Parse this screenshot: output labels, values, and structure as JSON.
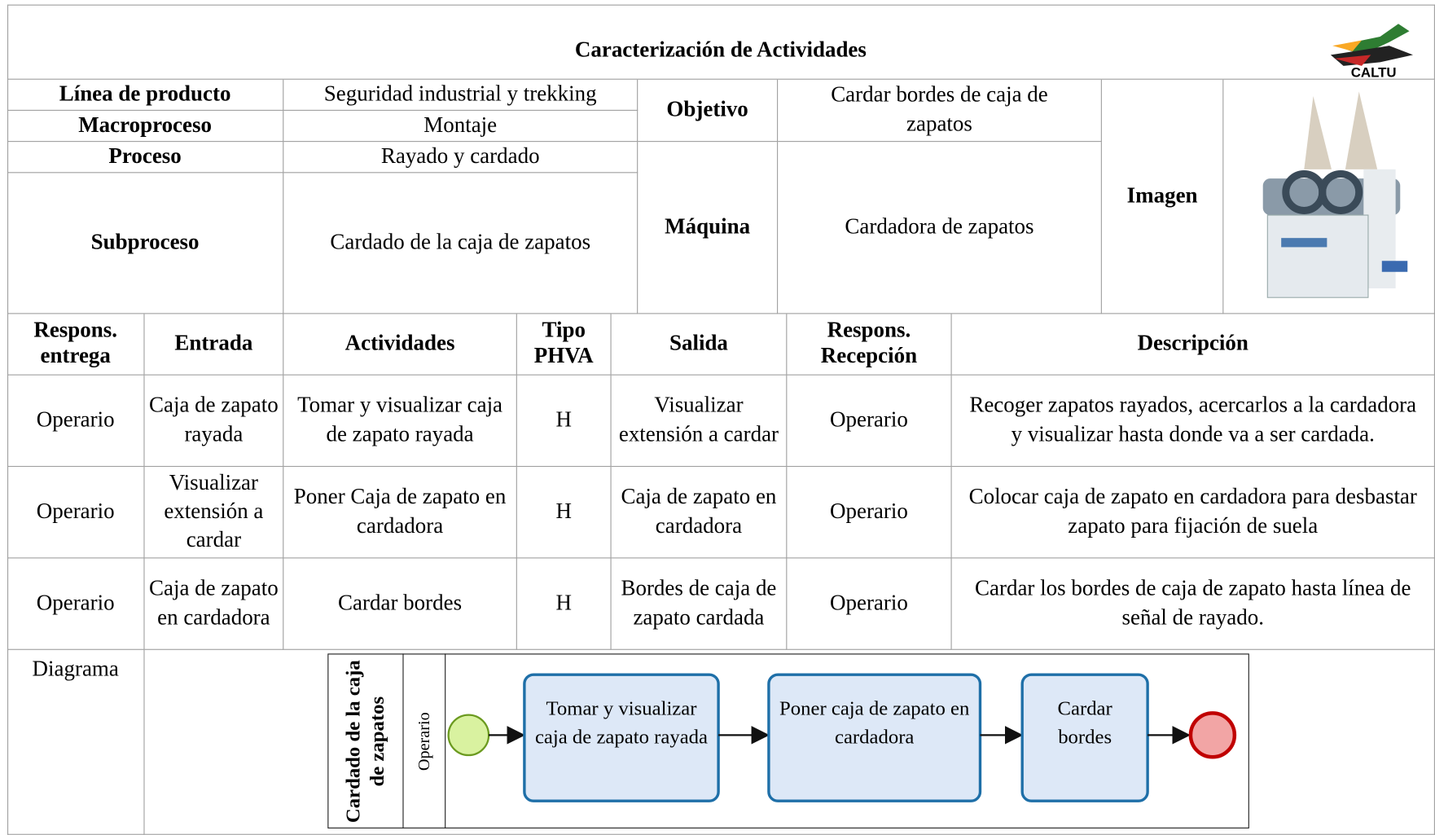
{
  "header": {
    "title": "Caracterización de Actividades",
    "logo_text": "CALTU"
  },
  "info_rows": [
    {
      "label": "Línea de producto",
      "value": "Seguridad industrial y trekking"
    },
    {
      "label": "Macroproceso",
      "value": "Montaje"
    },
    {
      "label": "Proceso",
      "value": "Rayado y cardado"
    },
    {
      "label": "Subproceso",
      "value": "Cardado de la caja de zapatos"
    }
  ],
  "objetivo": {
    "label": "Objetivo",
    "value": "Cardar bordes de caja de zapatos"
  },
  "maquina": {
    "label": "Máquina",
    "value": "Cardadora de zapatos"
  },
  "imagen_label": "Imagen",
  "table": {
    "headers": [
      "Respons. entrega",
      "Entrada",
      "Actividades",
      "Tipo PHVA",
      "Salida",
      "Respons. Recepción",
      "Descripción"
    ],
    "rows": [
      [
        "Operario",
        "Caja de zapato rayada",
        "Tomar y visualizar caja de zapato rayada",
        "H",
        "Visualizar extensión a cardar",
        "Operario",
        "Recoger zapatos rayados, acercarlos a la cardadora y visualizar hasta donde va a ser cardada."
      ],
      [
        "Operario",
        "Visualizar extensión a cardar",
        "Poner Caja de zapato en cardadora",
        "H",
        "Caja de zapato en cardadora",
        "Operario",
        "Colocar caja de zapato en cardadora para desbastar zapato para fijación de suela"
      ],
      [
        "Operario",
        "Caja de zapato en cardadora",
        "Cardar bordes",
        "H",
        "Bordes de caja de zapato cardada",
        "Operario",
        "Cardar los bordes de caja de zapato hasta línea de señal de rayado."
      ]
    ]
  },
  "diagram": {
    "label": "Diagrama",
    "pool": "Cardado de la caja de zapatos",
    "lane": "Operario",
    "tasks": [
      "Tomar y visualizar caja de zapato rayada",
      "Poner caja de zapato en cardadora",
      "Cardar bordes"
    ]
  }
}
